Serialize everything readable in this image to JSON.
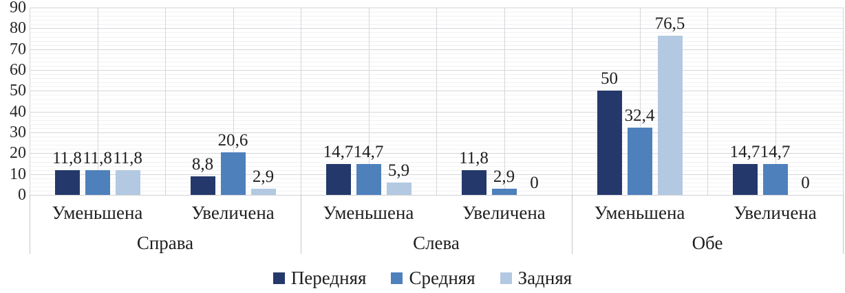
{
  "chart_data": {
    "type": "bar",
    "title": "",
    "xlabel": "",
    "ylabel": "",
    "ylim": [
      0,
      90
    ],
    "ytick_step": 10,
    "minor_ytick_step": 2,
    "grid": true,
    "legend_position": "bottom",
    "decimal_separator": ",",
    "series": [
      {
        "name": "Передняя",
        "color": "#24386B"
      },
      {
        "name": "Средняя",
        "color": "#4E80BC"
      },
      {
        "name": "Задняя",
        "color": "#B3C9E1"
      }
    ],
    "groups": [
      {
        "label": "Справа",
        "categories": [
          {
            "label": "Уменьшена",
            "values": [
              11.8,
              11.8,
              11.8
            ],
            "value_labels": [
              "11,8",
              "11,8",
              "11,8"
            ]
          },
          {
            "label": "Увеличена",
            "values": [
              8.8,
              20.6,
              2.9
            ],
            "value_labels": [
              "8,8",
              "20,6",
              "2,9"
            ]
          }
        ]
      },
      {
        "label": "Слева",
        "categories": [
          {
            "label": "Уменьшена",
            "values": [
              14.7,
              14.7,
              5.9
            ],
            "value_labels": [
              "14,7",
              "14,7",
              "5,9"
            ]
          },
          {
            "label": "Увеличена",
            "values": [
              11.8,
              2.9,
              0
            ],
            "value_labels": [
              "11,8",
              "2,9",
              "0"
            ]
          }
        ]
      },
      {
        "label": "Обе",
        "categories": [
          {
            "label": "Уменьшена",
            "values": [
              50,
              32.4,
              76.5
            ],
            "value_labels": [
              "50",
              "32,4",
              "76,5"
            ]
          },
          {
            "label": "Увеличена",
            "values": [
              14.7,
              14.7,
              0
            ],
            "value_labels": [
              "14,7",
              "14,7",
              "0"
            ]
          }
        ]
      }
    ],
    "yticks": [
      "0",
      "10",
      "20",
      "30",
      "40",
      "50",
      "60",
      "70",
      "80",
      "90"
    ]
  },
  "colors": {
    "background": "#ffffff",
    "major_gridline": "#d6d6db",
    "minor_gridline": "#f1f1f4",
    "vertical_gridline": "#d6d6db",
    "axis_line": "#d0d0d5",
    "group_separator": "#c6c6cc",
    "text": "#1f1f1f"
  }
}
